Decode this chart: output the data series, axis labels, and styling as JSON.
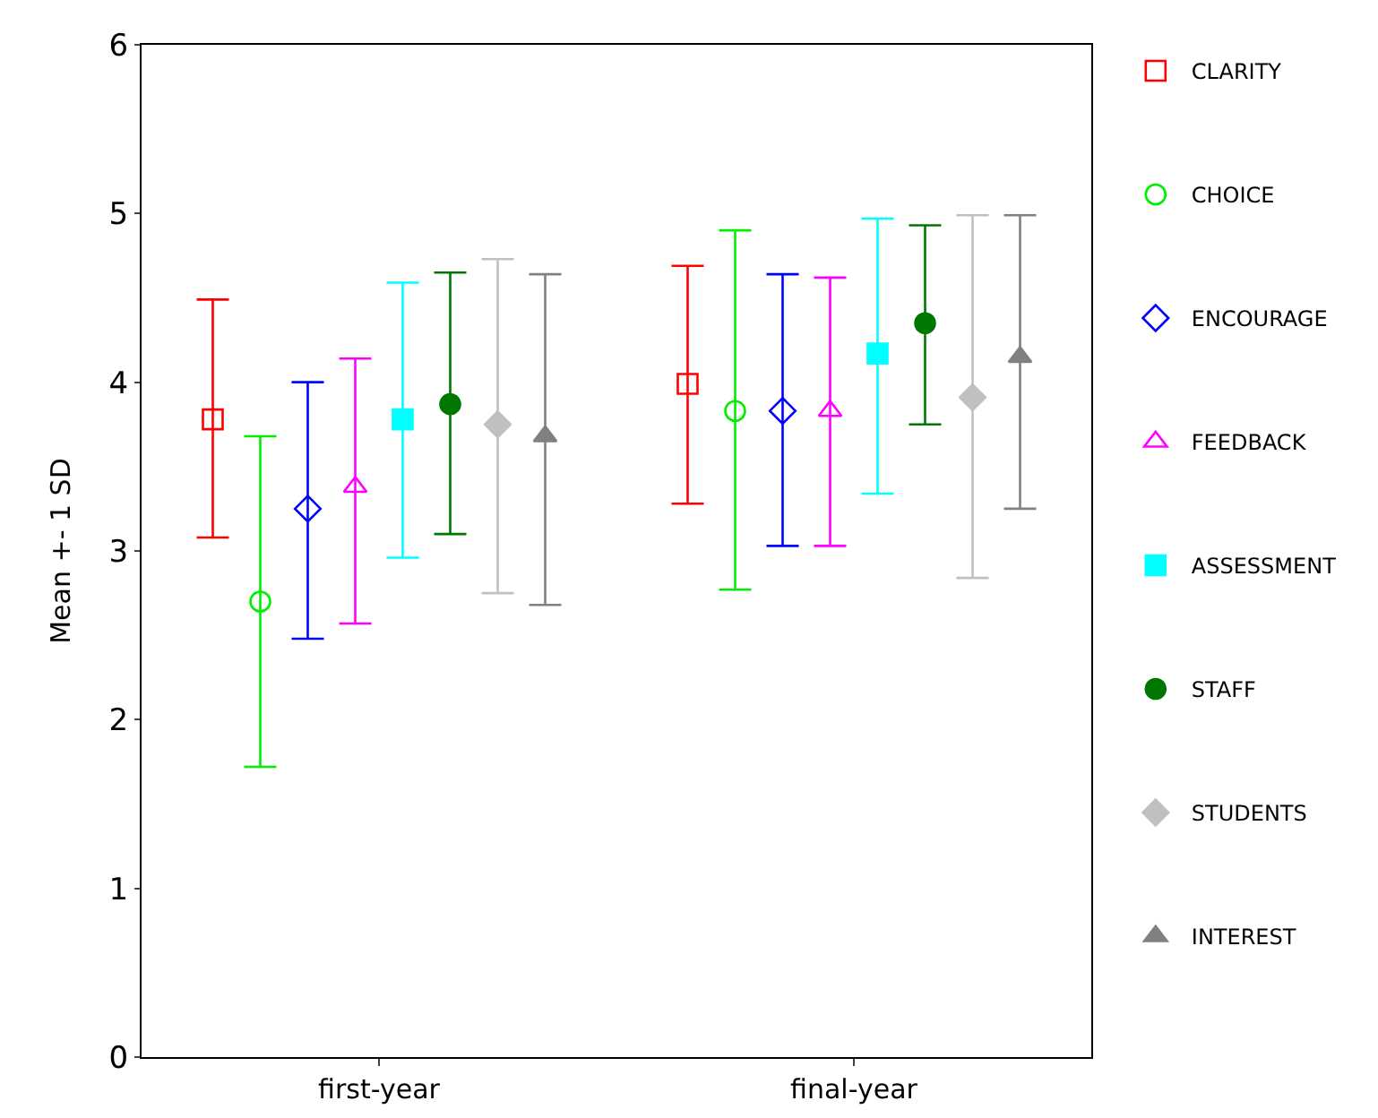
{
  "chart_data": {
    "type": "scatter",
    "ylabel": "Mean +- 1 SD",
    "categories": [
      "first-year",
      "final-year"
    ],
    "series": [
      {
        "name": "CLARITY",
        "color": "#ff0000",
        "marker": "square-open",
        "values": [
          3.78,
          3.99
        ],
        "errors": [
          [
            3.08,
            4.49
          ],
          [
            3.28,
            4.69
          ]
        ]
      },
      {
        "name": "CHOICE",
        "color": "#00ee00",
        "marker": "circle-open",
        "values": [
          2.7,
          3.83
        ],
        "errors": [
          [
            1.72,
            3.68
          ],
          [
            2.77,
            4.9
          ]
        ]
      },
      {
        "name": "ENCOURAGE",
        "color": "#0000ff",
        "marker": "diamond-open",
        "values": [
          3.25,
          3.83
        ],
        "errors": [
          [
            2.48,
            4.0
          ],
          [
            3.03,
            4.64
          ]
        ]
      },
      {
        "name": "FEEDBACK",
        "color": "#ff00ff",
        "marker": "triangle-open",
        "values": [
          3.38,
          3.83
        ],
        "errors": [
          [
            2.57,
            4.14
          ],
          [
            3.03,
            4.62
          ]
        ]
      },
      {
        "name": "ASSESSMENT",
        "color": "#00ffff",
        "marker": "square",
        "values": [
          3.78,
          4.17
        ],
        "errors": [
          [
            2.96,
            4.59
          ],
          [
            3.34,
            4.97
          ]
        ]
      },
      {
        "name": "STAFF",
        "color": "#007700",
        "marker": "circle",
        "values": [
          3.87,
          4.35
        ],
        "errors": [
          [
            3.1,
            4.65
          ],
          [
            3.75,
            4.93
          ]
        ]
      },
      {
        "name": "STUDENTS",
        "color": "#c0c0c0",
        "marker": "diamond",
        "values": [
          3.75,
          3.91
        ],
        "errors": [
          [
            2.75,
            4.73
          ],
          [
            2.84,
            4.99
          ]
        ]
      },
      {
        "name": "INTEREST",
        "color": "#808080",
        "marker": "triangle",
        "values": [
          3.68,
          4.15
        ],
        "errors": [
          [
            2.68,
            4.64
          ],
          [
            3.25,
            4.99
          ]
        ]
      }
    ],
    "ylim": [
      0,
      6
    ],
    "yticks": [
      0,
      1,
      2,
      3,
      4,
      5,
      6
    ],
    "grid": false,
    "legend": "right"
  }
}
